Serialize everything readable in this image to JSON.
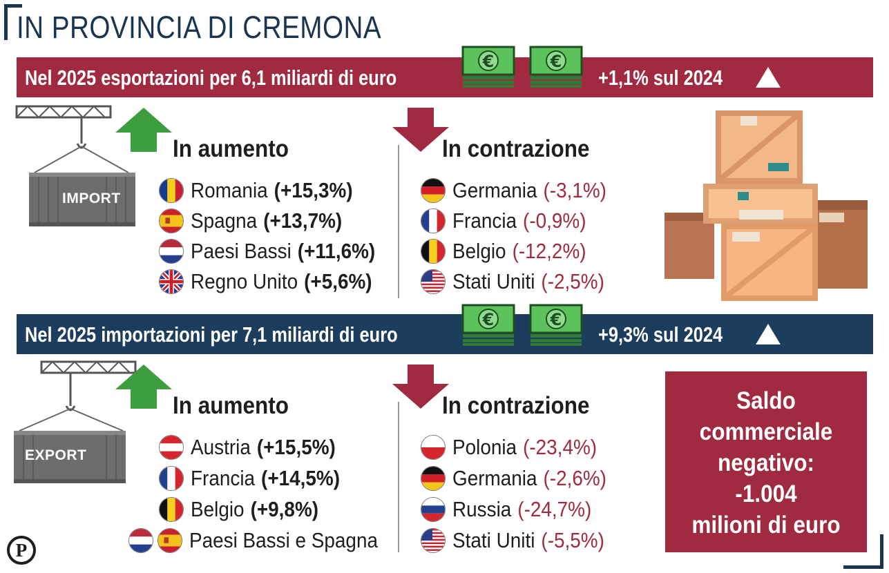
{
  "title": "IN PROVINCIA DI CREMONA",
  "exports": {
    "banner_text": "Nel 2025 esportazioni per 6,1 miliardi di euro",
    "change": "+1,1% sul 2024",
    "increase_heading": "In aumento",
    "decrease_heading": "In contrazione",
    "container_label": "IMPORT",
    "increase": [
      {
        "country": "Romania",
        "value": "(+15,3%)",
        "flags": [
          "romania"
        ]
      },
      {
        "country": "Spagna",
        "value": "(+13,7%)",
        "flags": [
          "spain"
        ]
      },
      {
        "country": "Paesi Bassi",
        "value": "(+11,6%)",
        "flags": [
          "netherlands"
        ]
      },
      {
        "country": "Regno Unito",
        "value": "(+5,6%)",
        "flags": [
          "uk"
        ]
      }
    ],
    "decrease": [
      {
        "country": "Germania",
        "value": "(-3,1%)",
        "flags": [
          "germany"
        ]
      },
      {
        "country": "Francia",
        "value": "(-0,9%)",
        "flags": [
          "france"
        ]
      },
      {
        "country": "Belgio",
        "value": "(-12,2%)",
        "flags": [
          "belgium"
        ]
      },
      {
        "country": "Stati Uniti",
        "value": "(-2,5%)",
        "flags": [
          "usa"
        ]
      }
    ]
  },
  "imports": {
    "banner_text": "Nel 2025 importazioni per 7,1 miliardi di euro",
    "change": "+9,3%  sul 2024",
    "increase_heading": "In aumento",
    "decrease_heading": "In contrazione",
    "container_label": "EXPORT",
    "increase": [
      {
        "country": "Austria",
        "value": "(+15,5%)",
        "flags": [
          "austria"
        ]
      },
      {
        "country": "Francia",
        "value": "(+14,5%)",
        "flags": [
          "france"
        ]
      },
      {
        "country": "Belgio",
        "value": "(+9,8%)",
        "flags": [
          "belgium"
        ]
      },
      {
        "country": "Paesi Bassi e Spagna",
        "value": "",
        "flags": [
          "netherlands",
          "spain"
        ]
      }
    ],
    "decrease": [
      {
        "country": "Polonia",
        "value": "(-23,4%)",
        "flags": [
          "poland"
        ]
      },
      {
        "country": "Germania",
        "value": "(-2,6%)",
        "flags": [
          "germany"
        ]
      },
      {
        "country": "Russia",
        "value": "(-24,7%)",
        "flags": [
          "russia"
        ]
      },
      {
        "country": "Stati Uniti",
        "value": "(-5,5%)",
        "flags": [
          "usa"
        ]
      }
    ]
  },
  "saldo": {
    "lines": [
      "Saldo",
      "commerciale",
      "negativo:",
      "-1.004",
      "milioni di euro"
    ]
  },
  "logo_letter": "P",
  "colors": {
    "export_banner": "#a02a3f",
    "import_banner": "#1c3d5d",
    "up_arrow": "#3c9e3c",
    "down_arrow": "#a02a3f",
    "negative_text": "#a02a3f"
  }
}
